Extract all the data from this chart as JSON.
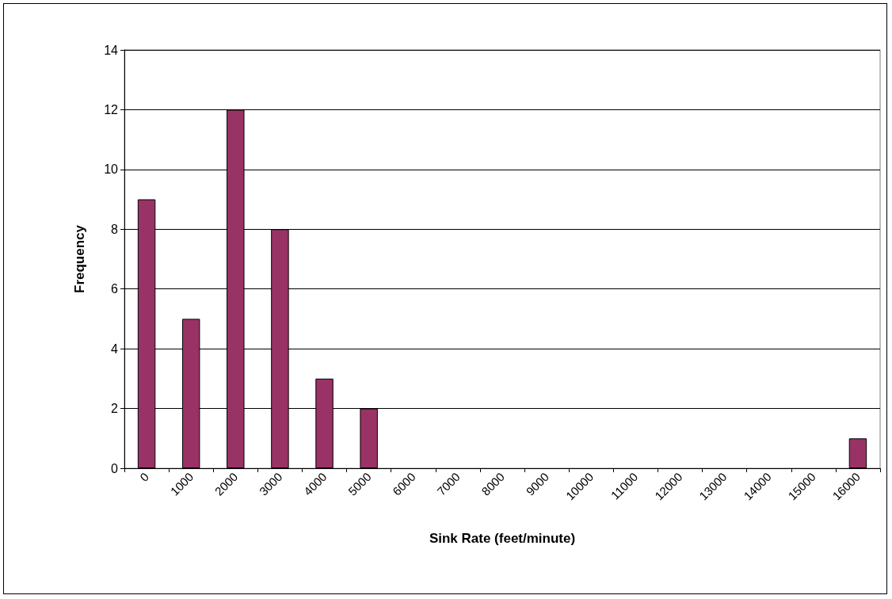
{
  "chart_data": {
    "type": "bar",
    "xlabel": "Sink Rate (feet/minute)",
    "ylabel": "Frequency",
    "categories": [
      "0",
      "1000",
      "2000",
      "3000",
      "4000",
      "5000",
      "6000",
      "7000",
      "8000",
      "9000",
      "10000",
      "11000",
      "12000",
      "13000",
      "14000",
      "15000",
      "16000"
    ],
    "values": [
      9,
      5,
      12,
      8,
      3,
      2,
      0,
      0,
      0,
      0,
      0,
      0,
      0,
      0,
      0,
      0,
      1
    ],
    "color": "#993366",
    "ylim": [
      0,
      14
    ],
    "yticks": [
      0,
      2,
      4,
      6,
      8,
      10,
      12,
      14
    ],
    "grid": "y"
  }
}
